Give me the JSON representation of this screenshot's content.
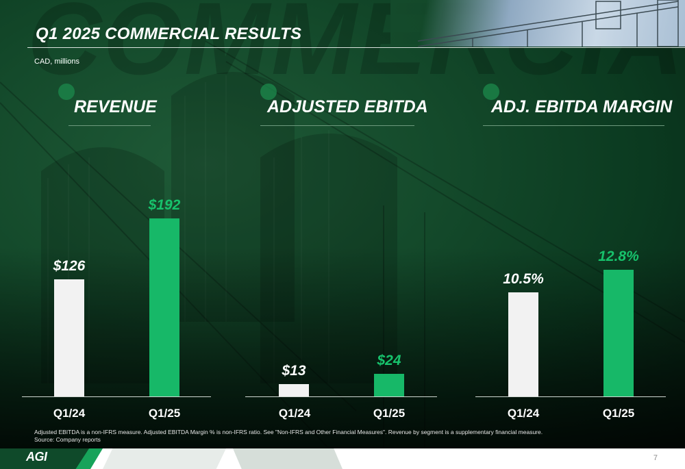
{
  "header": {
    "title": "Q1 2025 COMMERCIAL RESULTS",
    "subtitle": "CAD, millions"
  },
  "colors": {
    "prior_bar": "#f2f2f2",
    "current_bar": "#17b868",
    "current_label": "#17c26c",
    "background": "#144a2b"
  },
  "chart_data": [
    {
      "type": "bar",
      "title": "REVENUE",
      "categories": [
        "Q1/24",
        "Q1/25"
      ],
      "values": [
        126,
        192
      ],
      "labels": [
        "$126",
        "$192"
      ],
      "ylim": [
        0,
        192
      ]
    },
    {
      "type": "bar",
      "title": "ADJUSTED EBITDA",
      "categories": [
        "Q1/24",
        "Q1/25"
      ],
      "values": [
        13,
        24
      ],
      "labels": [
        "$13",
        "$24"
      ],
      "ylim": [
        0,
        192
      ]
    },
    {
      "type": "bar",
      "title": "ADJ. EBITDA MARGIN",
      "categories": [
        "Q1/24",
        "Q1/25"
      ],
      "values": [
        10.5,
        12.8
      ],
      "labels": [
        "10.5%",
        "12.8%"
      ],
      "ylim": [
        0,
        18
      ]
    }
  ],
  "footnote": {
    "line1": "Adjusted EBITDA is a non-IFRS measure. Adjusted EBITDA Margin % is non-IFRS ratio. See \"Non-IFRS and Other Financial Measures\". Revenue by segment is a supplementary financial measure.",
    "line2": "Source: Company reports"
  },
  "footer": {
    "logo": "AGI",
    "page_number": "7"
  }
}
